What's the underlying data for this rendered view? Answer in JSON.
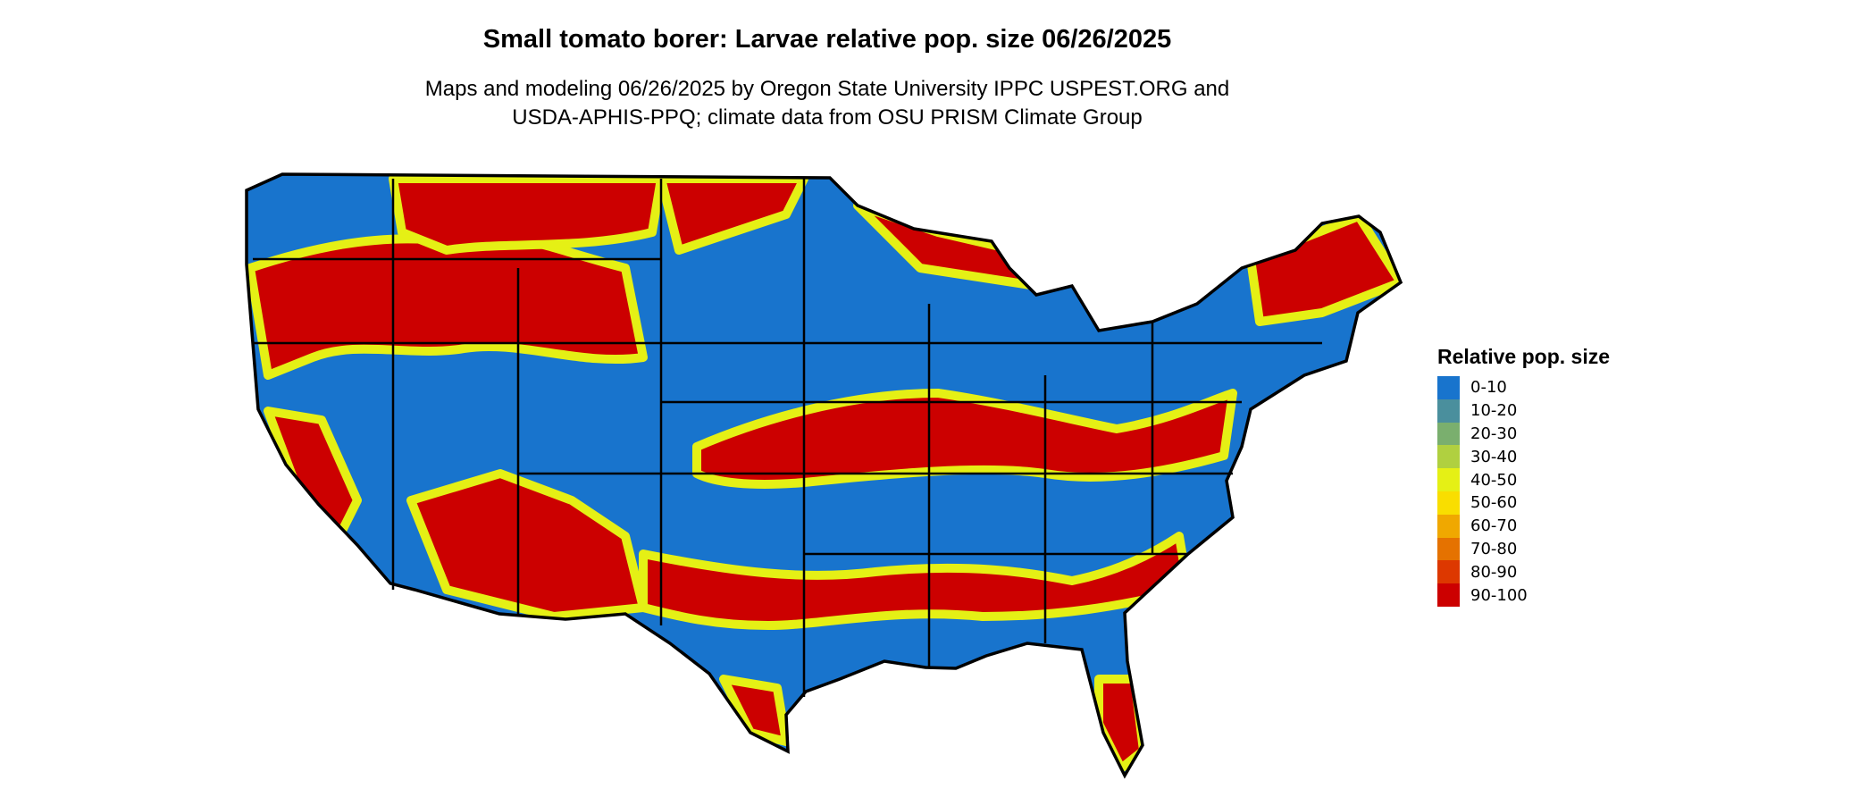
{
  "title": "Small tomato borer: Larvae relative pop. size 06/26/2025",
  "subtitle_line1": "Maps and modeling 06/26/2025 by Oregon State University IPPC USPEST.ORG and",
  "subtitle_line2": "USDA-APHIS-PPQ; climate data from OSU PRISM Climate Group",
  "legend": {
    "title": "Relative pop. size",
    "items": [
      {
        "label": "0-10",
        "color": "#1874CD"
      },
      {
        "label": "10-20",
        "color": "#4A8F9D"
      },
      {
        "label": "20-30",
        "color": "#7AAF6E"
      },
      {
        "label": "30-40",
        "color": "#B0D040"
      },
      {
        "label": "40-50",
        "color": "#E5F015"
      },
      {
        "label": "50-60",
        "color": "#F9DE00"
      },
      {
        "label": "60-70",
        "color": "#F0A800"
      },
      {
        "label": "70-80",
        "color": "#E57200"
      },
      {
        "label": "80-90",
        "color": "#DD3800"
      },
      {
        "label": "90-100",
        "color": "#CC0000"
      }
    ]
  }
}
